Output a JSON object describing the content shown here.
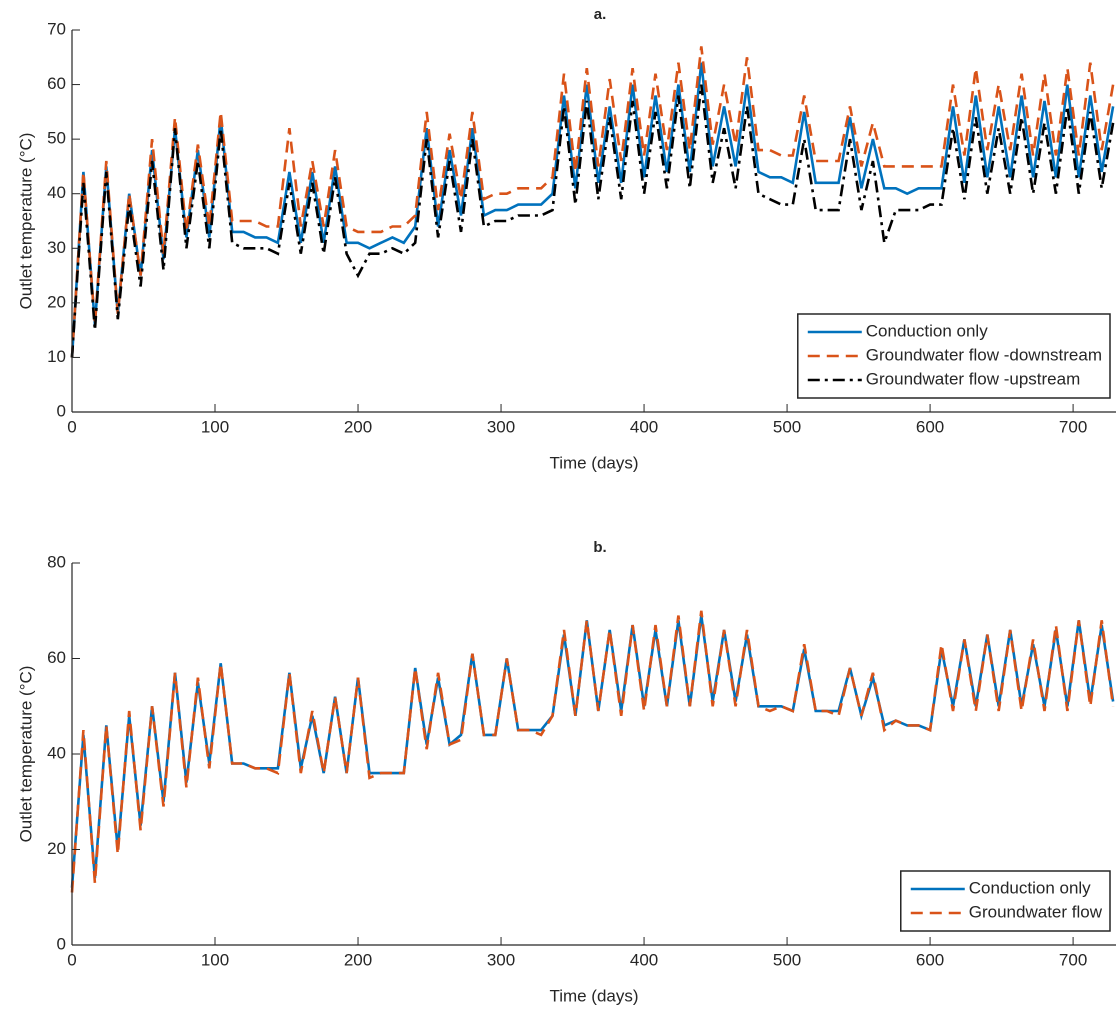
{
  "chart_data": [
    {
      "type": "line",
      "title": "a.",
      "x_label": "Time (days)",
      "y_label": "Outlet temperature (°C)",
      "x": [
        0,
        8,
        16,
        24,
        32,
        40,
        48,
        56,
        64,
        72,
        80,
        88,
        96,
        104,
        112,
        120,
        128,
        136,
        144,
        152,
        160,
        168,
        176,
        184,
        192,
        200,
        208,
        216,
        224,
        232,
        240,
        248,
        256,
        264,
        272,
        280,
        288,
        296,
        304,
        312,
        320,
        328,
        336,
        344,
        352,
        360,
        368,
        376,
        384,
        392,
        400,
        408,
        416,
        424,
        432,
        440,
        448,
        456,
        464,
        472,
        480,
        488,
        496,
        504,
        512,
        520,
        528,
        536,
        544,
        552,
        560,
        568,
        576,
        584,
        592,
        600,
        608,
        616,
        624,
        632,
        640,
        648,
        656,
        664,
        672,
        680,
        688,
        696,
        704,
        712,
        720,
        728
      ],
      "xlim": [
        0,
        730
      ],
      "xticks": [
        0,
        100,
        200,
        300,
        400,
        500,
        600,
        700
      ],
      "ylim": [
        0,
        70
      ],
      "yticks": [
        0,
        10,
        20,
        30,
        40,
        50,
        60,
        70
      ],
      "legend": "lower right",
      "series": [
        {
          "name": "Conduction only",
          "color": "#0072bd",
          "dash": "solid",
          "values": [
            10,
            44,
            16,
            45,
            18,
            40,
            25,
            48,
            28,
            52,
            32,
            48,
            32,
            54,
            33,
            33,
            32,
            32,
            31,
            44,
            31,
            44,
            31,
            45,
            31,
            31,
            30,
            31,
            32,
            31,
            34,
            52,
            34,
            48,
            36,
            52,
            36,
            37,
            37,
            38,
            38,
            38,
            40,
            58,
            41,
            60,
            42,
            56,
            42,
            60,
            43,
            58,
            44,
            60,
            44,
            64,
            45,
            56,
            45,
            60,
            44,
            43,
            43,
            42,
            55,
            42,
            42,
            42,
            54,
            41,
            50,
            41,
            41,
            40,
            41,
            41,
            41,
            56,
            42,
            58,
            43,
            56,
            43,
            58,
            43,
            57,
            43,
            60,
            43,
            58,
            44,
            56
          ]
        },
        {
          "name": "Groundwater flow -downstream",
          "color": "#d95319",
          "dash": "dashed",
          "values": [
            10,
            44,
            16,
            46,
            18,
            40,
            25,
            50,
            29,
            54,
            33,
            49,
            34,
            55,
            35,
            35,
            35,
            34,
            34,
            52,
            34,
            46,
            34,
            48,
            34,
            33,
            33,
            33,
            34,
            34,
            36,
            55,
            37,
            51,
            39,
            55,
            39,
            40,
            40,
            41,
            41,
            41,
            43,
            62,
            44,
            63,
            45,
            61,
            46,
            63,
            47,
            62,
            48,
            64,
            48,
            67,
            49,
            60,
            49,
            65,
            48,
            48,
            47,
            47,
            58,
            46,
            46,
            46,
            56,
            45,
            53,
            45,
            45,
            45,
            45,
            45,
            45,
            60,
            47,
            63,
            48,
            60,
            48,
            62,
            47,
            62,
            47,
            63,
            47,
            64,
            48,
            60
          ]
        },
        {
          "name": "Groundwater flow -upstream",
          "color": "#000000",
          "dash": "dashdot",
          "values": [
            10,
            42,
            15,
            44,
            17,
            38,
            23,
            46,
            26,
            52,
            30,
            46,
            30,
            52,
            31,
            30,
            30,
            30,
            29,
            42,
            29,
            42,
            29,
            43,
            29,
            25,
            29,
            29,
            30,
            29,
            31,
            50,
            32,
            46,
            33,
            50,
            34,
            35,
            35,
            36,
            36,
            36,
            37,
            56,
            38,
            57,
            39,
            54,
            39,
            57,
            40,
            55,
            41,
            58,
            41,
            60,
            42,
            52,
            41,
            56,
            40,
            39,
            38,
            38,
            50,
            37,
            37,
            37,
            50,
            37,
            46,
            31,
            37,
            37,
            37,
            38,
            38,
            52,
            39,
            54,
            40,
            52,
            40,
            54,
            40,
            53,
            40,
            56,
            40,
            55,
            41,
            53
          ]
        }
      ]
    },
    {
      "type": "line",
      "title": "b.",
      "x_label": "Time (days)",
      "y_label": "Outlet temperature (°C)",
      "x": [
        0,
        8,
        16,
        24,
        32,
        40,
        48,
        56,
        64,
        72,
        80,
        88,
        96,
        104,
        112,
        120,
        128,
        136,
        144,
        152,
        160,
        168,
        176,
        184,
        192,
        200,
        208,
        216,
        224,
        232,
        240,
        248,
        256,
        264,
        272,
        280,
        288,
        296,
        304,
        312,
        320,
        328,
        336,
        344,
        352,
        360,
        368,
        376,
        384,
        392,
        400,
        408,
        416,
        424,
        432,
        440,
        448,
        456,
        464,
        472,
        480,
        488,
        496,
        504,
        512,
        520,
        528,
        536,
        544,
        552,
        560,
        568,
        576,
        584,
        592,
        600,
        608,
        616,
        624,
        632,
        640,
        648,
        656,
        664,
        672,
        680,
        688,
        696,
        704,
        712,
        720,
        728
      ],
      "xlim": [
        0,
        730
      ],
      "xticks": [
        0,
        100,
        200,
        300,
        400,
        500,
        600,
        700
      ],
      "ylim": [
        0,
        80
      ],
      "yticks": [
        0,
        20,
        40,
        60,
        80
      ],
      "legend": "lower right",
      "series": [
        {
          "name": "Conduction only",
          "color": "#0072bd",
          "dash": "solid",
          "values": [
            12,
            44,
            14,
            46,
            20,
            48,
            25,
            50,
            30,
            57,
            34,
            55,
            38,
            59,
            38,
            38,
            37,
            37,
            37,
            57,
            37,
            48,
            36,
            52,
            36,
            56,
            36,
            36,
            36,
            36,
            58,
            42,
            56,
            42,
            44,
            61,
            44,
            44,
            60,
            45,
            45,
            45,
            48,
            65,
            48,
            68,
            49,
            66,
            49,
            67,
            50,
            66,
            50,
            68,
            50,
            69,
            51,
            66,
            51,
            65,
            50,
            50,
            50,
            49,
            62,
            49,
            49,
            49,
            58,
            48,
            56,
            46,
            47,
            46,
            46,
            45,
            62,
            50,
            64,
            50,
            65,
            50,
            66,
            50,
            63,
            50,
            66,
            50,
            68,
            51,
            67,
            51
          ]
        },
        {
          "name": "Groundwater flow",
          "color": "#d95319",
          "dash": "dashed",
          "values": [
            11,
            45,
            13,
            46,
            19,
            49,
            24,
            50,
            29,
            57,
            33,
            56,
            37,
            59,
            38,
            38,
            37,
            37,
            36,
            57,
            36,
            49,
            36,
            52,
            36,
            56,
            35,
            36,
            36,
            36,
            58,
            41,
            57,
            42,
            43,
            61,
            44,
            44,
            60,
            45,
            45,
            44,
            48,
            66,
            48,
            68,
            49,
            66,
            48,
            67,
            49,
            67,
            50,
            69,
            50,
            70,
            50,
            66,
            50,
            66,
            50,
            49,
            50,
            49,
            63,
            49,
            49,
            48,
            58,
            48,
            57,
            45,
            47,
            46,
            46,
            45,
            63,
            49,
            64,
            49,
            65,
            49,
            66,
            49,
            64,
            49,
            67,
            49,
            68,
            50,
            68,
            50
          ]
        }
      ]
    }
  ]
}
